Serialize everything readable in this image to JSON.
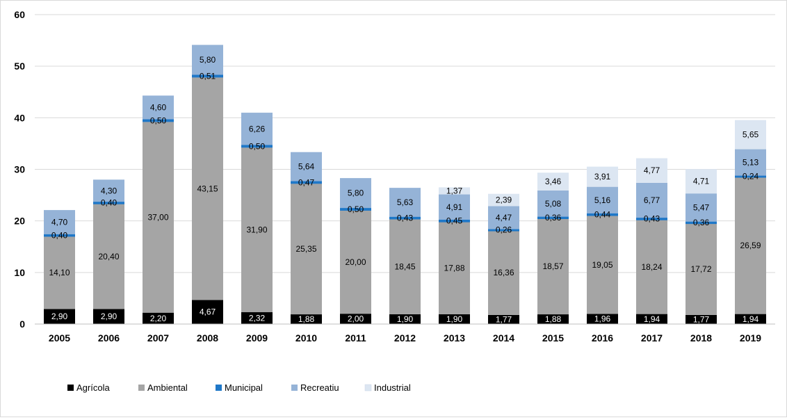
{
  "chart_data": {
    "type": "bar",
    "stacked": true,
    "title": "",
    "xlabel": "",
    "ylabel": "",
    "ylim": [
      0,
      60
    ],
    "yticks": [
      0,
      10,
      20,
      30,
      40,
      50,
      60
    ],
    "grid": true,
    "legend_position": "bottom-left",
    "categories": [
      "2005",
      "2006",
      "2007",
      "2008",
      "2009",
      "2010",
      "2011",
      "2012",
      "2013",
      "2014",
      "2015",
      "2016",
      "2017",
      "2018",
      "2019"
    ],
    "series": [
      {
        "name": "Agrícola",
        "color": "#000000",
        "label_color": "#ffffff",
        "values": [
          2.9,
          2.9,
          2.2,
          4.67,
          2.32,
          1.88,
          2.0,
          1.9,
          1.9,
          1.77,
          1.88,
          1.96,
          1.94,
          1.77,
          1.94
        ],
        "labels": [
          "2,90",
          "2,90",
          "2,20",
          "4,67",
          "2,32",
          "1,88",
          "2,00",
          "1,90",
          "1,90",
          "1,77",
          "1,88",
          "1,96",
          "1,94",
          "1,77",
          "1,94"
        ]
      },
      {
        "name": "Ambiental",
        "color": "#a5a5a5",
        "label_color": "#000000",
        "values": [
          14.1,
          20.4,
          37.0,
          43.15,
          31.9,
          25.35,
          20.0,
          18.45,
          17.88,
          16.36,
          18.57,
          19.05,
          18.24,
          17.72,
          26.59
        ],
        "labels": [
          "14,10",
          "20,40",
          "37,00",
          "43,15",
          "31,90",
          "25,35",
          "20,00",
          "18,45",
          "17,88",
          "16,36",
          "18,57",
          "19,05",
          "18,24",
          "17,72",
          "26,59"
        ]
      },
      {
        "name": "Municipal",
        "color": "#1f78c8",
        "label_color": "#000000",
        "values": [
          0.4,
          0.4,
          0.5,
          0.51,
          0.5,
          0.47,
          0.5,
          0.43,
          0.45,
          0.26,
          0.36,
          0.44,
          0.43,
          0.36,
          0.24
        ],
        "labels": [
          "0,40",
          "0,40",
          "0,50",
          "0,51",
          "0,50",
          "0,47",
          "0,50",
          "0,43",
          "0,45",
          "0,26",
          "0,36",
          "0,44",
          "0,43",
          "0,36",
          "0,24"
        ]
      },
      {
        "name": "Recreatiu",
        "color": "#95b3d7",
        "label_color": "#000000",
        "values": [
          4.7,
          4.3,
          4.6,
          5.8,
          6.26,
          5.64,
          5.8,
          5.63,
          4.91,
          4.47,
          5.08,
          5.16,
          6.77,
          5.47,
          5.13
        ],
        "labels": [
          "4,70",
          "4,30",
          "4,60",
          "5,80",
          "6,26",
          "5,64",
          "5,80",
          "5,63",
          "4,91",
          "4,47",
          "5,08",
          "5,16",
          "6,77",
          "5,47",
          "5,13"
        ]
      },
      {
        "name": "Industrial",
        "color": "#dce6f2",
        "label_color": "#000000",
        "values": [
          null,
          null,
          null,
          null,
          null,
          null,
          null,
          null,
          1.37,
          2.39,
          3.46,
          3.91,
          4.77,
          4.71,
          5.65
        ],
        "labels": [
          "",
          "",
          "",
          "",
          "",
          "",
          "",
          "",
          "1,37",
          "2,39",
          "3,46",
          "3,91",
          "4,77",
          "4,71",
          "5,65"
        ]
      }
    ]
  }
}
